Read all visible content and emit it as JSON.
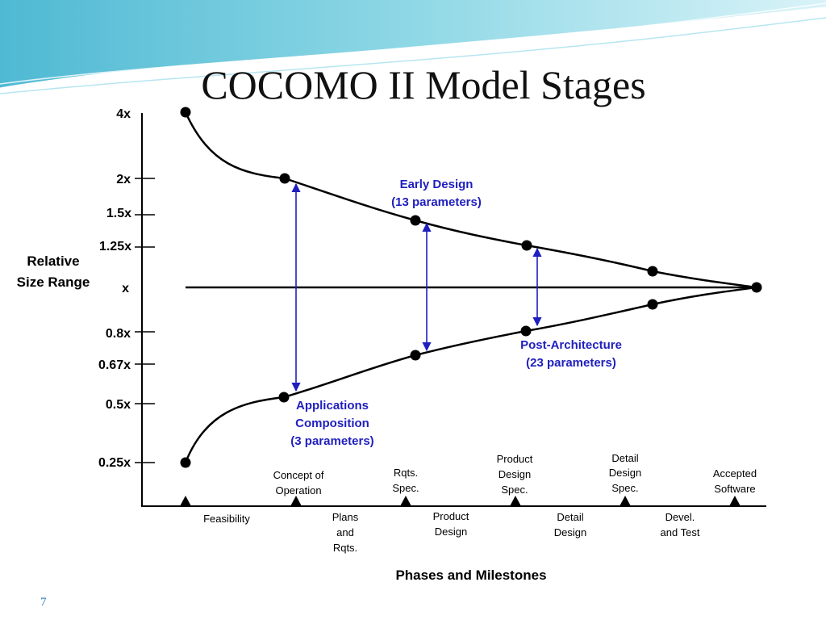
{
  "slide": {
    "title": "COCOMO II Model Stages",
    "page_number": "7"
  },
  "colors": {
    "annotation_blue": "#1f1fbf",
    "black": "#000000",
    "header_teal": "#5bc3d8"
  },
  "diagram": {
    "y_axis_title": [
      "Relative",
      "Size Range"
    ],
    "x_axis_title": "Phases and Milestones",
    "y_ticks": [
      "4x",
      "2x",
      "1.5x",
      "1.25x",
      "x",
      "0.8x",
      "0.67x",
      "0.5x",
      "0.25x"
    ],
    "milestones": [
      [
        "Concept of",
        "Operation"
      ],
      [
        "Rqts.",
        "Spec."
      ],
      [
        "Product",
        "Design",
        "Spec."
      ],
      [
        "Detail",
        "Design",
        "Spec."
      ],
      [
        "Accepted",
        "Software"
      ]
    ],
    "phases": [
      [
        "Feasibility"
      ],
      [
        "Plans",
        "and",
        "Rqts."
      ],
      [
        "Product",
        "Design"
      ],
      [
        "Detail",
        "Design"
      ],
      [
        "Devel.",
        "and Test"
      ]
    ],
    "stages": {
      "early_design": [
        "Early Design",
        "(13 parameters)"
      ],
      "post_architecture": [
        "Post-Architecture",
        "(23 parameters)"
      ],
      "applications_composition": [
        "Applications",
        "Composition",
        "(3 parameters)"
      ]
    }
  }
}
